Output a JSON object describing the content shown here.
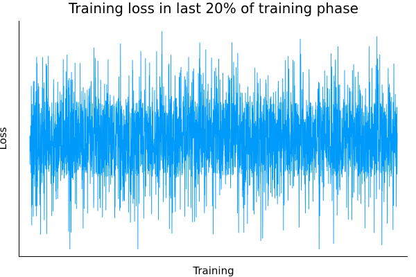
{
  "chart_data": {
    "type": "line",
    "title": "Training loss in last 20% of training phase",
    "xlabel": "Training",
    "ylabel": "Loss",
    "x_ticks": [],
    "y_ticks": [],
    "grid": false,
    "legend": "none",
    "series": [
      {
        "color": "#009AFA",
        "center": 0.5,
        "core_half_band": 0.16,
        "typical_spike_amplitude": 0.36,
        "max_spike_amplitude": 0.47,
        "n_points": 3000
      }
    ]
  }
}
